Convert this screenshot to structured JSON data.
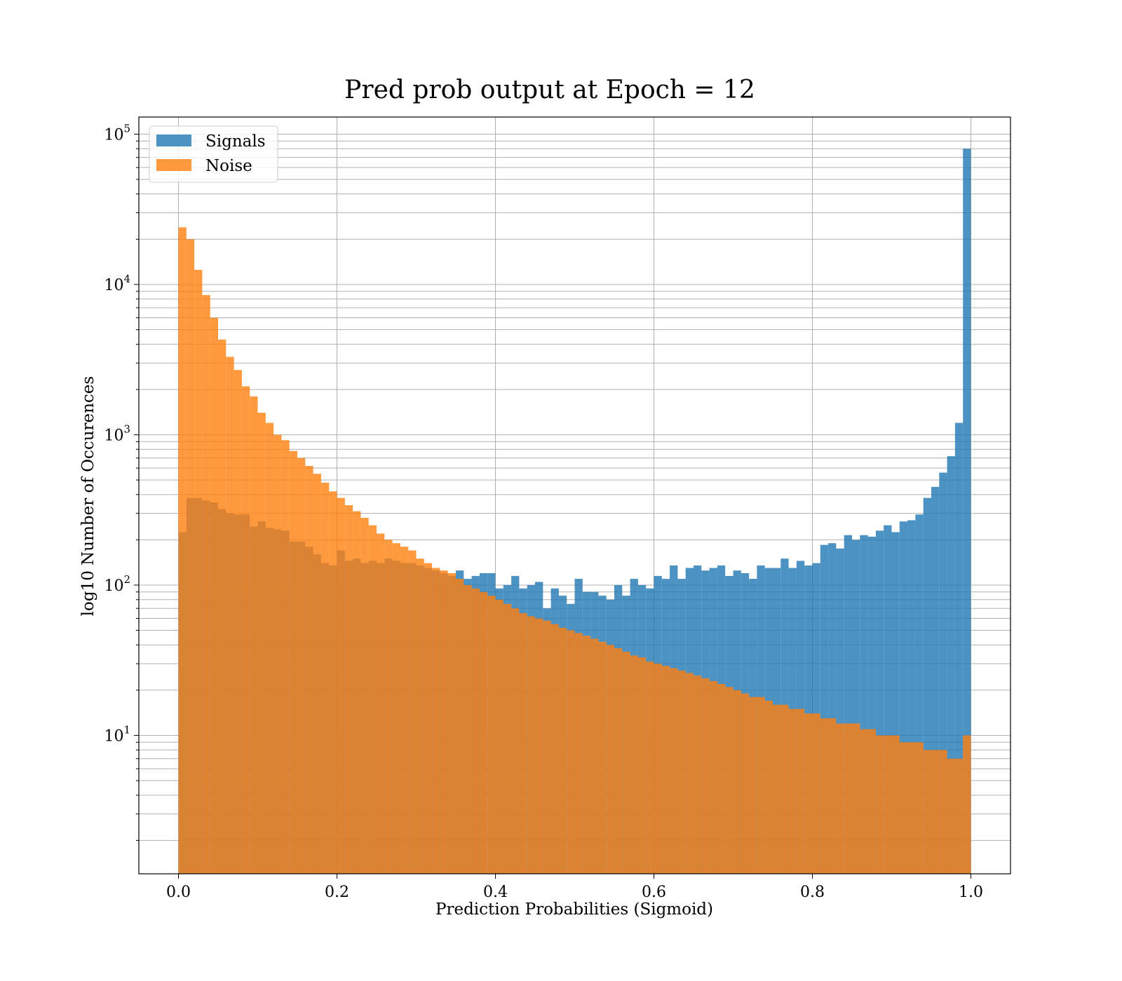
{
  "chart_data": {
    "type": "histogram",
    "title": "Pred prob output at Epoch = 12",
    "xlabel": "Prediction Probabilities (Sigmoid)",
    "ylabel": "log10 Number of Occurences",
    "xlim": [
      -0.05,
      1.05
    ],
    "ylim": [
      1.2,
      130000
    ],
    "yscale": "log",
    "grid": true,
    "legend_position": "top-left",
    "x_ticks": [
      "0.0",
      "0.2",
      "0.4",
      "0.6",
      "0.8",
      "1.0"
    ],
    "x_tick_values": [
      0.0,
      0.2,
      0.4,
      0.6,
      0.8,
      1.0
    ],
    "y_ticks": [
      {
        "base": "10",
        "exp": "1",
        "value": 10
      },
      {
        "base": "10",
        "exp": "2",
        "value": 100
      },
      {
        "base": "10",
        "exp": "3",
        "value": 1000
      },
      {
        "base": "10",
        "exp": "4",
        "value": 10000
      },
      {
        "base": "10",
        "exp": "5",
        "value": 100000
      }
    ],
    "bin_range": [
      0.0,
      1.0
    ],
    "bin_count": 100,
    "series": [
      {
        "name": "Signals",
        "color": "#1f77b4",
        "opacity": 0.8,
        "values": [
          225,
          380,
          380,
          365,
          355,
          320,
          300,
          295,
          295,
          245,
          265,
          240,
          235,
          230,
          195,
          195,
          180,
          160,
          140,
          135,
          170,
          145,
          150,
          140,
          145,
          140,
          150,
          145,
          140,
          140,
          135,
          130,
          125,
          120,
          115,
          125,
          110,
          115,
          120,
          120,
          95,
          100,
          115,
          95,
          100,
          105,
          70,
          95,
          85,
          75,
          110,
          90,
          90,
          85,
          80,
          100,
          85,
          110,
          100,
          95,
          115,
          110,
          135,
          110,
          130,
          135,
          125,
          130,
          135,
          115,
          125,
          120,
          110,
          135,
          130,
          130,
          150,
          130,
          145,
          135,
          140,
          185,
          190,
          175,
          215,
          200,
          215,
          210,
          230,
          250,
          225,
          265,
          270,
          295,
          380,
          450,
          560,
          720,
          1200,
          80000
        ]
      },
      {
        "name": "Noise",
        "color": "#ff7f0e",
        "opacity": 0.8,
        "values": [
          24000,
          20000,
          12500,
          8500,
          6000,
          4300,
          3300,
          2700,
          2100,
          1800,
          1400,
          1200,
          1000,
          920,
          780,
          700,
          620,
          550,
          480,
          420,
          380,
          340,
          310,
          280,
          250,
          220,
          200,
          190,
          180,
          170,
          150,
          140,
          130,
          125,
          120,
          110,
          100,
          95,
          90,
          85,
          80,
          75,
          70,
          65,
          62,
          60,
          58,
          55,
          52,
          50,
          48,
          46,
          44,
          42,
          40,
          38,
          36,
          34,
          33,
          31,
          30,
          29,
          28,
          27,
          26,
          25,
          24,
          23,
          22,
          21,
          20,
          19,
          18,
          18,
          17,
          16,
          16,
          15,
          15,
          14,
          14,
          13,
          13,
          12,
          12,
          12,
          11,
          11,
          10,
          10,
          10,
          9,
          9,
          9,
          8,
          8,
          8,
          7,
          7,
          10
        ]
      }
    ]
  }
}
